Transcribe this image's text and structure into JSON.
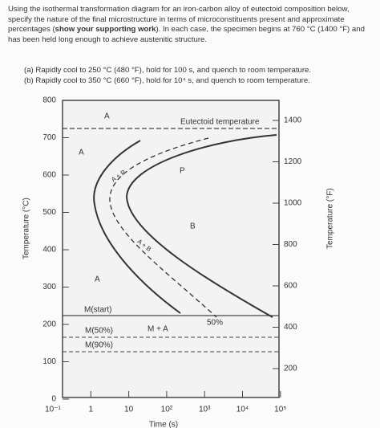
{
  "problem": {
    "intro_1": "Using the isothermal transformation diagram for an iron-carbon alloy of eutectoid composition below, specify the nature of the final microstructure in terms of microconstituents present and approximate percentages (",
    "intro_bold": "show your supporting work",
    "intro_2": "). In each case, the specimen begins at 760 °C (1400 °F) and has been held long enough to achieve austenitic structure.",
    "parts": [
      "(a)  Rapidly cool to 250 °C (480 °F), hold for 100 s, and quench to room temperature.",
      "(b)  Rapidly cool to 350 °C (660 °F), hold for 10⁴ s, and quench to room temperature."
    ]
  },
  "figure": {
    "y_label_left": "Temperature (°C)",
    "y_label_right": "Temperature (°F)",
    "x_label": "Time (s)",
    "left_ticks": [
      "800",
      "700",
      "600",
      "500",
      "400",
      "300",
      "200",
      "100",
      "0"
    ],
    "right_ticks": [
      "1400",
      "1200",
      "1000",
      "800",
      "600",
      "400",
      "200"
    ],
    "x_ticks": [
      "10⁻¹",
      "1",
      "10",
      "10²",
      "10³",
      "10⁴",
      "10⁵"
    ],
    "labels": {
      "a_top": "A",
      "a_left": "A",
      "a_low": "A",
      "eutectoid": "Eutectoid temperature",
      "p": "P",
      "b": "B",
      "ap": "A + P",
      "ab": "A + B",
      "m_start": "M(start)",
      "m_a": "M + A",
      "pct50": "50%",
      "m50": "M(50%)",
      "m90": "M(90%)"
    }
  }
}
